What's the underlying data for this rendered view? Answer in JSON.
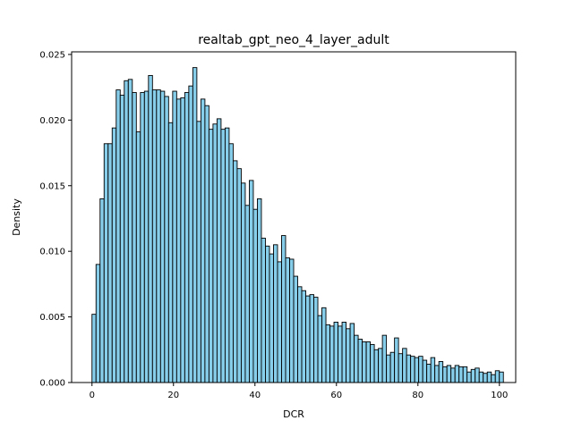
{
  "chart_data": {
    "type": "bar",
    "title": "realtab_gpt_neo_4_layer_adult",
    "xlabel": "DCR",
    "ylabel": "Density",
    "xlim": [
      -5,
      104
    ],
    "ylim": [
      0,
      0.0252
    ],
    "xticks": [
      0,
      20,
      40,
      60,
      80,
      100
    ],
    "xtick_labels": [
      "0",
      "20",
      "40",
      "60",
      "80",
      "100"
    ],
    "yticks": [
      0,
      0.005,
      0.01,
      0.015,
      0.02,
      0.025
    ],
    "ytick_labels": [
      "0.000",
      "0.005",
      "0.010",
      "0.015",
      "0.020",
      "0.025"
    ],
    "grid": false,
    "bar_color": "#87ceeb",
    "edge_color": "#000000",
    "bin_start": 0,
    "bin_width": 0.99,
    "values": [
      0.0052,
      0.009,
      0.014,
      0.0182,
      0.0182,
      0.0194,
      0.0223,
      0.0219,
      0.023,
      0.0231,
      0.0221,
      0.0191,
      0.0221,
      0.0222,
      0.0234,
      0.0223,
      0.0223,
      0.0222,
      0.0218,
      0.0198,
      0.0222,
      0.0216,
      0.0217,
      0.0221,
      0.0226,
      0.024,
      0.0199,
      0.0216,
      0.0211,
      0.0193,
      0.0197,
      0.0201,
      0.0193,
      0.0194,
      0.0182,
      0.0169,
      0.0163,
      0.0152,
      0.0135,
      0.0154,
      0.0132,
      0.014,
      0.011,
      0.0104,
      0.0098,
      0.0105,
      0.0092,
      0.0112,
      0.0095,
      0.0094,
      0.0081,
      0.0073,
      0.007,
      0.0066,
      0.0067,
      0.0065,
      0.0051,
      0.0057,
      0.0044,
      0.0043,
      0.0046,
      0.0043,
      0.0046,
      0.0041,
      0.0045,
      0.0036,
      0.0033,
      0.0031,
      0.0031,
      0.0029,
      0.0025,
      0.0026,
      0.0036,
      0.0021,
      0.0023,
      0.0034,
      0.0022,
      0.0026,
      0.0021,
      0.002,
      0.0019,
      0.002,
      0.0017,
      0.0014,
      0.0019,
      0.0013,
      0.0016,
      0.0012,
      0.0013,
      0.0011,
      0.0013,
      0.0012,
      0.0012,
      0.0008,
      0.001,
      0.0011,
      0.0008,
      0.0007,
      0.0008,
      0.0006,
      0.0009,
      0.0008
    ]
  }
}
